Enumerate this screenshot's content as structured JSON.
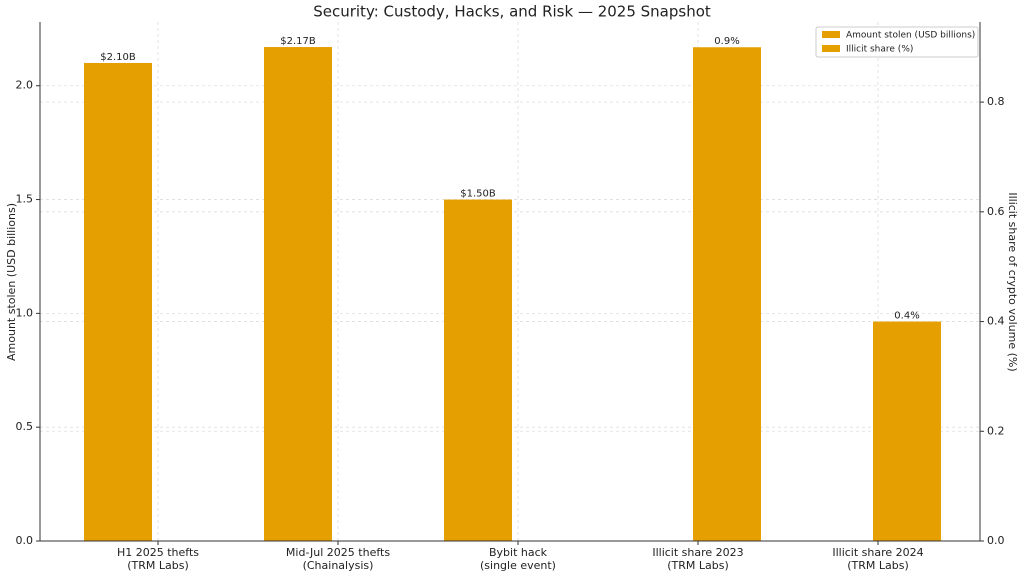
{
  "chart_data": {
    "type": "bar",
    "title": "Security: Custody, Hacks, and Risk — 2025 Snapshot",
    "categories": [
      "H1 2025 thefts\n(TRM Labs)",
      "Mid-Jul 2025 thefts\n(Chainalysis)",
      "Bybit hack\n(single event)",
      "Illicit share 2023\n(TRM Labs)",
      "Illicit share 2024\n(TRM Labs)"
    ],
    "y_label": "Amount stolen (USD billions)",
    "y2_label": "Illicit share of crypto volume (%)",
    "series": [
      {
        "name": "Amount stolen (USD billions)",
        "color": "#e59f00",
        "values": [
          2.1,
          2.17,
          1.5,
          null,
          null
        ],
        "value_labels": [
          "$2.10B",
          "$2.17B",
          "$1.50B",
          null,
          null
        ]
      },
      {
        "name": "Illicit share (%)",
        "color": "#e59f00",
        "axis": "y2",
        "values": [
          null,
          null,
          null,
          0.9,
          0.4
        ],
        "value_labels": [
          null,
          null,
          null,
          "0.9%",
          "0.4%"
        ]
      }
    ],
    "ylim": [
      0,
      2.28
    ],
    "yticks": [
      {
        "value": 0,
        "label": "0.0"
      },
      {
        "value": 0.5,
        "label": "0.5"
      },
      {
        "value": 1,
        "label": "1.0"
      },
      {
        "value": 1.5,
        "label": "1.5"
      },
      {
        "value": 2,
        "label": "2.0"
      }
    ],
    "y2lim": [
      0,
      0.946
    ],
    "y2ticks": [
      {
        "value": 0,
        "label": "0.0"
      },
      {
        "value": 0.2,
        "label": "0.2"
      },
      {
        "value": 0.4,
        "label": "0.4"
      },
      {
        "value": 0.6,
        "label": "0.6"
      },
      {
        "value": 0.8,
        "label": "0.8"
      }
    ],
    "grid": true,
    "legend": "upper right"
  }
}
